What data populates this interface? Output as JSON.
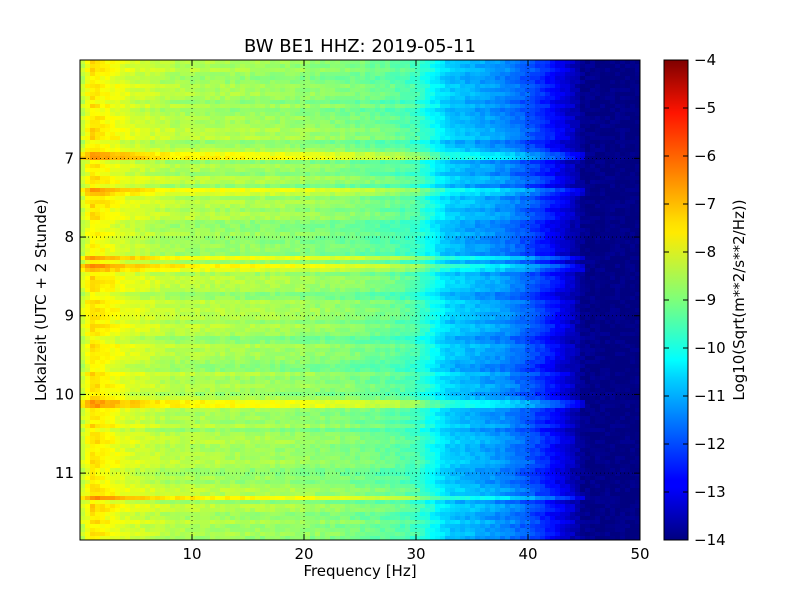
{
  "chart_data": {
    "type": "heatmap",
    "title": "BW BE1 HHZ: 2019-05-11",
    "xlabel": "Frequency [Hz]",
    "ylabel": "Lokalzeit (UTC + 2 Stunde)",
    "xlim": [
      0,
      50
    ],
    "ylim": [
      5.75,
      11.85
    ],
    "y_axis_inverted": true,
    "x_ticks": [
      10,
      20,
      30,
      40,
      50
    ],
    "y_ticks": [
      7,
      8,
      9,
      10,
      11
    ],
    "grid": true,
    "colormap": "jet",
    "colorbar": {
      "label": "Log10(Sqrt(m**2/s**2/Hz))",
      "range": [
        -14,
        -4
      ],
      "ticks": [
        -4,
        -5,
        -6,
        -7,
        -8,
        -9,
        -10,
        -11,
        -12,
        -13,
        -14
      ]
    },
    "spectrum_profile": {
      "frequency_hz": [
        0.3,
        1,
        2,
        4,
        8,
        12,
        16,
        20,
        24,
        28,
        30,
        31,
        32,
        33,
        35,
        38,
        40,
        42,
        43,
        44,
        45,
        50
      ],
      "log_amplitude": [
        -8.3,
        -7.5,
        -7.7,
        -8.1,
        -8.5,
        -8.6,
        -8.7,
        -8.8,
        -9.0,
        -9.3,
        -9.6,
        -10.0,
        -10.4,
        -10.8,
        -11.0,
        -11.4,
        -11.9,
        -12.6,
        -13.0,
        -13.4,
        -13.9,
        -14.0
      ]
    },
    "bright_bands_hour": [
      6.97,
      7.42,
      8.27,
      8.4,
      10.12,
      11.32
    ]
  }
}
